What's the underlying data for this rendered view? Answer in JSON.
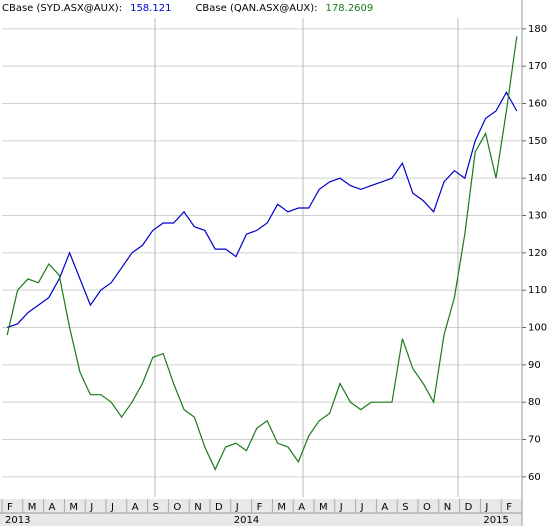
{
  "chart_data": {
    "type": "line",
    "categories": [
      "F",
      null,
      "M",
      null,
      "A",
      null,
      "M",
      null,
      "J",
      null,
      "J",
      null,
      "A",
      null,
      "S",
      null,
      "O",
      null,
      "N",
      null,
      "D",
      null,
      "J",
      null,
      "F",
      null,
      "M",
      null,
      "A",
      null,
      "M",
      null,
      "J",
      null,
      "J",
      null,
      "A",
      null,
      "S",
      null,
      "O",
      null,
      "N",
      null,
      "D",
      null,
      "J",
      null,
      "F",
      null
    ],
    "year_labels": [
      "2013",
      "2014",
      "2015"
    ],
    "series": [
      {
        "name": "CBase (SYD.ASX@AUX):",
        "last": 158.121,
        "color": "#0000cc",
        "values": [
          100,
          101,
          104,
          106,
          108,
          113,
          120,
          113,
          106,
          110,
          112,
          116,
          120,
          122,
          126,
          128,
          128,
          131,
          127,
          126,
          121,
          121,
          119,
          125,
          126,
          128,
          133,
          131,
          132,
          132,
          137,
          139,
          140,
          138,
          137,
          138,
          139,
          140,
          144,
          136,
          134,
          131,
          139,
          142,
          140,
          150,
          156,
          158,
          163,
          158
        ]
      },
      {
        "name": "CBase (QAN.ASX@AUX):",
        "last": 178.2609,
        "color": "#1a7a1a",
        "values": [
          98,
          110,
          113,
          112,
          117,
          114,
          100,
          88,
          82,
          82,
          80,
          76,
          80,
          85,
          92,
          93,
          85,
          78,
          76,
          68,
          62,
          68,
          69,
          67,
          73,
          75,
          69,
          68,
          64,
          71,
          75,
          77,
          85,
          80,
          78,
          80,
          80,
          80,
          97,
          89,
          85,
          80,
          98,
          108,
          125,
          147,
          152,
          140,
          158,
          178
        ]
      }
    ],
    "ylim": [
      54.6,
      182.9
    ],
    "yticks": [
      60,
      70,
      80,
      90,
      100,
      110,
      120,
      130,
      140,
      150,
      160,
      170,
      180
    ],
    "grid": true
  }
}
